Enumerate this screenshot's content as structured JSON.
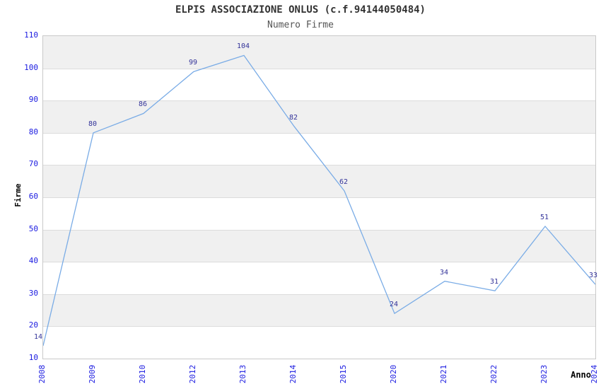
{
  "title": "ELPIS ASSOCIAZIONE ONLUS (c.f.94144050484)",
  "subtitle": "Numero Firme",
  "chart_data": {
    "type": "line",
    "title": "ELPIS ASSOCIAZIONE ONLUS (c.f.94144050484)",
    "subtitle": "Numero Firme",
    "xlabel": "Anno",
    "ylabel": "Firme",
    "categories": [
      "2008",
      "2009",
      "2010",
      "2012",
      "2013",
      "2014",
      "2015",
      "2020",
      "2021",
      "2022",
      "2023",
      "2024"
    ],
    "values": [
      14,
      80,
      86,
      99,
      104,
      82,
      62,
      24,
      34,
      31,
      51,
      33
    ],
    "point_labels": [
      "14",
      "80",
      "86",
      "99",
      "104",
      "82",
      "62",
      "24",
      "34",
      "31",
      "51",
      "33"
    ],
    "ylim": [
      10,
      110
    ],
    "ytick_step": 10,
    "ytick_labels": [
      "110",
      "100",
      "90",
      "80",
      "70",
      "60",
      "50",
      "40",
      "30",
      "20",
      "10"
    ],
    "grid": "alternating horizontal bands, gray band at top interval",
    "legend": "none",
    "colors": {
      "line": "#7aace6",
      "axis_tick_labels": "#1a1ae0",
      "point_labels": "#333399",
      "band_gray": "#f0f0f0",
      "gridline": "#dcdcdc",
      "plot_border": "#c9c9c9",
      "title": "#333333",
      "subtitle": "#555555",
      "axis_titles": "#000000"
    }
  }
}
